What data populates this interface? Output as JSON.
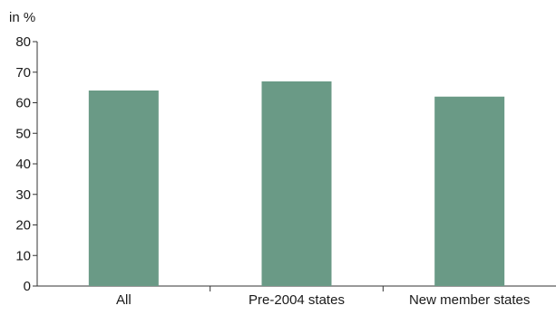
{
  "chart_data": {
    "type": "bar",
    "ylabel": "in %",
    "categories": [
      "All",
      "Pre-2004 states",
      "New member states"
    ],
    "values": [
      64,
      67,
      62
    ],
    "ylim": [
      0,
      80
    ],
    "yticks": [
      0,
      10,
      20,
      30,
      40,
      50,
      60,
      70,
      80
    ],
    "grid": false,
    "legend": "none",
    "colors": {
      "bar": "#6a9a86",
      "axis": "#333333"
    }
  }
}
